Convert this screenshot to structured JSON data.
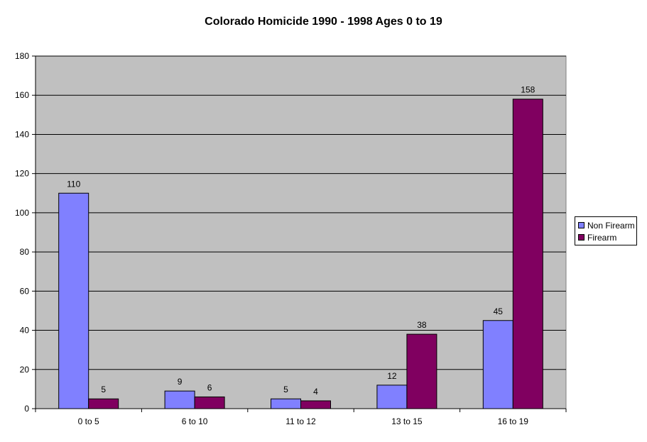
{
  "chart_data": {
    "type": "bar",
    "title": "Colorado Homicide 1990 - 1998 Ages 0 to 19",
    "xlabel": "",
    "ylabel": "",
    "categories": [
      "0 to 5",
      "6 to 10",
      "11 to 12",
      "13 to 15",
      "16 to 19"
    ],
    "series": [
      {
        "name": "Non Firearm",
        "values": [
          110,
          9,
          5,
          12,
          45
        ],
        "color": "#8080ff"
      },
      {
        "name": "Firearm",
        "values": [
          5,
          6,
          4,
          38,
          158
        ],
        "color": "#800060"
      }
    ],
    "ylim": [
      0,
      180
    ],
    "yticks": [
      0,
      20,
      40,
      60,
      80,
      100,
      120,
      140,
      160,
      180
    ],
    "grid": true,
    "legend_position": "right",
    "plot_background": "#c0c0c0"
  }
}
